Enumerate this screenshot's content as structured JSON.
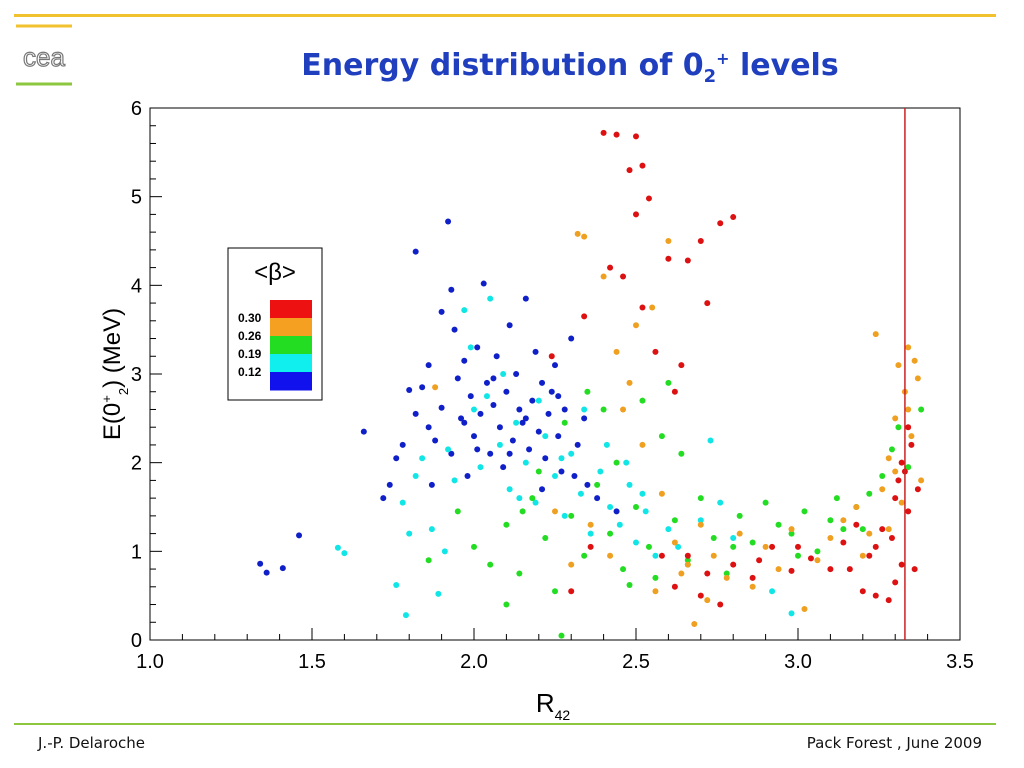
{
  "slide": {
    "title_main": "Energy distribution of  0",
    "title_sub": "2",
    "title_sup": "+",
    "title_tail": " levels",
    "footer_left": "J.-P. Delaroche",
    "footer_right": "Pack Forest , June 2009",
    "logo_text": "cea",
    "colors": {
      "title": "#1f3fbf",
      "top_rule": "#f2c12e",
      "bottom_rule": "#8dc63f"
    }
  },
  "chart_data": {
    "type": "scatter",
    "xlabel": "R",
    "xlabel_sub": "42",
    "ylabel_pre": "E(0",
    "ylabel_sup": "+",
    "ylabel_sub": "2",
    "ylabel_post": ") (MeV)",
    "xlim": [
      1.0,
      3.5
    ],
    "ylim": [
      0,
      6
    ],
    "x_ticks": [
      "1.0",
      "1.5",
      "2.0",
      "2.5",
      "3.0",
      "3.5"
    ],
    "y_ticks": [
      "0",
      "1",
      "2",
      "3",
      "4",
      "5",
      "6"
    ],
    "grid": false,
    "vertical_line": {
      "x": 3.33,
      "color": "#cc2222"
    },
    "legend": {
      "title": "<β>",
      "placement": "upper-left",
      "labels": [
        "0.30",
        "0.26",
        "0.19",
        "0.12"
      ],
      "bands": [
        "#ee1111",
        "#f5a020",
        "#22dd22",
        "#11eeee",
        "#1111ee"
      ]
    },
    "series": [
      {
        "color": "#1020c8",
        "points": [
          [
            1.34,
            0.86
          ],
          [
            1.36,
            0.76
          ],
          [
            1.41,
            0.81
          ],
          [
            1.46,
            1.18
          ],
          [
            1.66,
            2.35
          ],
          [
            1.72,
            1.6
          ],
          [
            1.74,
            1.75
          ],
          [
            1.78,
            2.2
          ],
          [
            1.8,
            2.82
          ],
          [
            1.82,
            2.55
          ],
          [
            1.82,
            4.38
          ],
          [
            1.86,
            3.1
          ],
          [
            1.86,
            2.4
          ],
          [
            1.87,
            1.75
          ],
          [
            1.9,
            2.62
          ],
          [
            1.9,
            3.7
          ],
          [
            1.93,
            2.1
          ],
          [
            1.93,
            3.95
          ],
          [
            1.94,
            3.5
          ],
          [
            1.95,
            2.95
          ],
          [
            1.96,
            2.5
          ],
          [
            1.97,
            3.15
          ],
          [
            1.98,
            1.85
          ],
          [
            1.99,
            2.75
          ],
          [
            2.0,
            2.3
          ],
          [
            2.01,
            3.3
          ],
          [
            2.02,
            2.55
          ],
          [
            2.03,
            4.02
          ],
          [
            2.04,
            2.9
          ],
          [
            2.05,
            2.1
          ],
          [
            2.06,
            2.65
          ],
          [
            2.07,
            3.2
          ],
          [
            2.08,
            2.4
          ],
          [
            2.09,
            1.95
          ],
          [
            2.1,
            2.8
          ],
          [
            2.11,
            3.55
          ],
          [
            2.12,
            2.25
          ],
          [
            2.13,
            3.0
          ],
          [
            2.14,
            2.6
          ],
          [
            2.15,
            2.45
          ],
          [
            2.16,
            3.85
          ],
          [
            2.17,
            2.15
          ],
          [
            2.18,
            2.7
          ],
          [
            2.19,
            3.25
          ],
          [
            2.2,
            2.35
          ],
          [
            2.21,
            2.9
          ],
          [
            2.22,
            2.05
          ],
          [
            2.23,
            2.55
          ],
          [
            2.24,
            2.8
          ],
          [
            2.25,
            3.1
          ],
          [
            2.26,
            2.3
          ],
          [
            2.27,
            1.9
          ],
          [
            2.28,
            2.6
          ],
          [
            2.3,
            3.4
          ],
          [
            2.32,
            2.2
          ],
          [
            2.34,
            2.5
          ],
          [
            2.35,
            1.75
          ],
          [
            2.38,
            1.6
          ],
          [
            1.92,
            4.72
          ],
          [
            1.88,
            2.25
          ],
          [
            1.97,
            2.45
          ],
          [
            2.01,
            2.15
          ],
          [
            2.06,
            2.95
          ],
          [
            2.11,
            2.1
          ],
          [
            2.16,
            2.5
          ],
          [
            2.21,
            1.7
          ],
          [
            2.26,
            2.75
          ],
          [
            2.31,
            1.85
          ],
          [
            1.76,
            2.05
          ],
          [
            1.84,
            2.85
          ],
          [
            2.44,
            1.45
          ]
        ]
      },
      {
        "color": "#11e6e6",
        "points": [
          [
            1.58,
            1.04
          ],
          [
            1.6,
            0.98
          ],
          [
            1.76,
            0.62
          ],
          [
            1.78,
            1.55
          ],
          [
            1.79,
            0.28
          ],
          [
            1.8,
            1.2
          ],
          [
            1.84,
            2.05
          ],
          [
            1.87,
            1.25
          ],
          [
            1.89,
            0.52
          ],
          [
            1.92,
            2.15
          ],
          [
            1.94,
            1.8
          ],
          [
            1.97,
            3.72
          ],
          [
            2.0,
            2.6
          ],
          [
            2.02,
            1.95
          ],
          [
            2.05,
            3.85
          ],
          [
            2.08,
            2.2
          ],
          [
            2.11,
            1.7
          ],
          [
            2.13,
            2.45
          ],
          [
            2.16,
            2.0
          ],
          [
            2.19,
            1.55
          ],
          [
            2.22,
            2.3
          ],
          [
            2.25,
            1.85
          ],
          [
            2.28,
            1.4
          ],
          [
            2.3,
            2.1
          ],
          [
            2.33,
            1.65
          ],
          [
            2.36,
            1.2
          ],
          [
            2.39,
            1.9
          ],
          [
            2.42,
            1.5
          ],
          [
            2.45,
            1.3
          ],
          [
            2.48,
            1.75
          ],
          [
            2.5,
            1.1
          ],
          [
            2.53,
            1.45
          ],
          [
            2.56,
            0.95
          ],
          [
            2.6,
            1.25
          ],
          [
            2.63,
            1.05
          ],
          [
            2.66,
            0.85
          ],
          [
            2.7,
            1.35
          ],
          [
            2.73,
            2.25
          ],
          [
            2.76,
            1.55
          ],
          [
            2.8,
            1.15
          ],
          [
            2.92,
            0.55
          ],
          [
            2.98,
            0.3
          ],
          [
            1.99,
            3.3
          ],
          [
            2.04,
            2.75
          ],
          [
            2.09,
            3.0
          ],
          [
            2.14,
            1.6
          ],
          [
            2.2,
            2.7
          ],
          [
            2.27,
            2.05
          ],
          [
            2.34,
            2.6
          ],
          [
            2.41,
            2.2
          ],
          [
            2.47,
            2.0
          ],
          [
            2.52,
            1.65
          ],
          [
            1.82,
            1.85
          ],
          [
            1.91,
            1.0
          ]
        ]
      },
      {
        "color": "#22dd22",
        "points": [
          [
            1.86,
            0.9
          ],
          [
            1.95,
            1.45
          ],
          [
            2.0,
            1.05
          ],
          [
            2.05,
            0.85
          ],
          [
            2.1,
            1.3
          ],
          [
            2.14,
            0.75
          ],
          [
            2.18,
            1.6
          ],
          [
            2.22,
            1.15
          ],
          [
            2.25,
            0.55
          ],
          [
            2.27,
            0.05
          ],
          [
            2.3,
            1.4
          ],
          [
            2.34,
            0.95
          ],
          [
            2.38,
            1.75
          ],
          [
            2.42,
            1.2
          ],
          [
            2.46,
            0.8
          ],
          [
            2.5,
            1.5
          ],
          [
            2.54,
            1.05
          ],
          [
            2.58,
            2.3
          ],
          [
            2.62,
            1.35
          ],
          [
            2.66,
            0.9
          ],
          [
            2.7,
            1.6
          ],
          [
            2.74,
            1.15
          ],
          [
            2.78,
            0.75
          ],
          [
            2.82,
            1.4
          ],
          [
            2.86,
            1.1
          ],
          [
            2.9,
            1.55
          ],
          [
            2.94,
            1.3
          ],
          [
            2.98,
            1.2
          ],
          [
            3.02,
            1.45
          ],
          [
            3.06,
            1.0
          ],
          [
            3.1,
            1.35
          ],
          [
            3.14,
            1.25
          ],
          [
            3.18,
            1.5
          ],
          [
            3.22,
            1.65
          ],
          [
            3.26,
            1.85
          ],
          [
            3.29,
            2.15
          ],
          [
            3.31,
            2.4
          ],
          [
            3.34,
            1.95
          ],
          [
            3.38,
            2.6
          ],
          [
            2.1,
            0.4
          ],
          [
            2.4,
            2.6
          ],
          [
            2.6,
            2.9
          ],
          [
            2.35,
            2.8
          ],
          [
            2.2,
            1.9
          ],
          [
            2.44,
            2.0
          ],
          [
            2.52,
            2.7
          ],
          [
            2.28,
            2.45
          ],
          [
            2.64,
            2.1
          ],
          [
            2.8,
            1.05
          ],
          [
            3.0,
            0.95
          ],
          [
            3.12,
            1.6
          ],
          [
            3.2,
            1.25
          ],
          [
            2.48,
            0.62
          ],
          [
            2.56,
            0.7
          ],
          [
            2.15,
            1.45
          ]
        ]
      },
      {
        "color": "#f0a020",
        "points": [
          [
            1.88,
            2.85
          ],
          [
            2.25,
            1.45
          ],
          [
            2.3,
            0.85
          ],
          [
            2.32,
            4.58
          ],
          [
            2.34,
            4.55
          ],
          [
            2.36,
            1.3
          ],
          [
            2.4,
            4.1
          ],
          [
            2.44,
            3.25
          ],
          [
            2.46,
            2.6
          ],
          [
            2.5,
            3.55
          ],
          [
            2.52,
            2.2
          ],
          [
            2.55,
            3.75
          ],
          [
            2.58,
            1.65
          ],
          [
            2.6,
            4.5
          ],
          [
            2.62,
            1.1
          ],
          [
            2.66,
            0.85
          ],
          [
            2.68,
            0.18
          ],
          [
            2.7,
            1.3
          ],
          [
            2.74,
            0.95
          ],
          [
            2.78,
            0.7
          ],
          [
            2.82,
            1.2
          ],
          [
            2.86,
            0.6
          ],
          [
            2.9,
            1.05
          ],
          [
            2.94,
            0.8
          ],
          [
            2.98,
            1.25
          ],
          [
            3.02,
            0.35
          ],
          [
            3.06,
            0.9
          ],
          [
            3.1,
            1.15
          ],
          [
            3.14,
            1.35
          ],
          [
            3.18,
            1.5
          ],
          [
            3.22,
            1.2
          ],
          [
            3.24,
            3.45
          ],
          [
            3.26,
            1.7
          ],
          [
            3.28,
            2.05
          ],
          [
            3.3,
            2.5
          ],
          [
            3.31,
            3.1
          ],
          [
            3.33,
            2.8
          ],
          [
            3.34,
            3.3
          ],
          [
            3.35,
            2.3
          ],
          [
            3.37,
            2.95
          ],
          [
            3.38,
            1.8
          ],
          [
            3.36,
            3.15
          ],
          [
            3.32,
            1.55
          ],
          [
            2.42,
            0.95
          ],
          [
            2.48,
            2.9
          ],
          [
            2.56,
            0.55
          ],
          [
            2.64,
            0.75
          ],
          [
            2.72,
            0.45
          ],
          [
            3.2,
            0.95
          ],
          [
            3.28,
            1.25
          ],
          [
            3.34,
            2.6
          ],
          [
            3.3,
            1.9
          ]
        ]
      },
      {
        "color": "#dd1111",
        "points": [
          [
            2.24,
            3.2
          ],
          [
            2.3,
            0.55
          ],
          [
            2.36,
            1.05
          ],
          [
            2.4,
            5.72
          ],
          [
            2.44,
            5.7
          ],
          [
            2.48,
            5.3
          ],
          [
            2.5,
            5.68
          ],
          [
            2.52,
            5.35
          ],
          [
            2.54,
            4.98
          ],
          [
            2.46,
            4.1
          ],
          [
            2.5,
            4.8
          ],
          [
            2.6,
            4.3
          ],
          [
            2.64,
            3.1
          ],
          [
            2.66,
            4.28
          ],
          [
            2.7,
            4.5
          ],
          [
            2.72,
            3.8
          ],
          [
            2.76,
            4.7
          ],
          [
            2.8,
            4.77
          ],
          [
            2.62,
            2.8
          ],
          [
            2.56,
            3.25
          ],
          [
            2.58,
            0.95
          ],
          [
            2.62,
            0.6
          ],
          [
            2.66,
            0.95
          ],
          [
            2.72,
            0.75
          ],
          [
            2.76,
            0.4
          ],
          [
            2.8,
            0.85
          ],
          [
            2.86,
            0.7
          ],
          [
            2.92,
            1.05
          ],
          [
            2.98,
            0.78
          ],
          [
            3.04,
            0.92
          ],
          [
            3.1,
            0.8
          ],
          [
            3.14,
            1.1
          ],
          [
            3.18,
            1.3
          ],
          [
            3.2,
            0.55
          ],
          [
            3.22,
            0.95
          ],
          [
            3.24,
            1.05
          ],
          [
            3.26,
            1.25
          ],
          [
            3.28,
            0.45
          ],
          [
            3.3,
            1.6
          ],
          [
            3.31,
            1.8
          ],
          [
            3.32,
            2.0
          ],
          [
            3.33,
            1.9
          ],
          [
            3.34,
            1.45
          ],
          [
            3.35,
            2.2
          ],
          [
            3.36,
            0.8
          ],
          [
            3.37,
            1.7
          ],
          [
            3.32,
            0.85
          ],
          [
            3.29,
            1.15
          ],
          [
            3.34,
            2.4
          ],
          [
            3.24,
            0.5
          ],
          [
            3.3,
            0.65
          ],
          [
            2.42,
            4.2
          ],
          [
            2.52,
            3.75
          ],
          [
            2.7,
            0.5
          ],
          [
            2.88,
            0.9
          ],
          [
            3.0,
            1.05
          ],
          [
            3.16,
            0.8
          ],
          [
            2.34,
            3.65
          ]
        ]
      }
    ]
  }
}
